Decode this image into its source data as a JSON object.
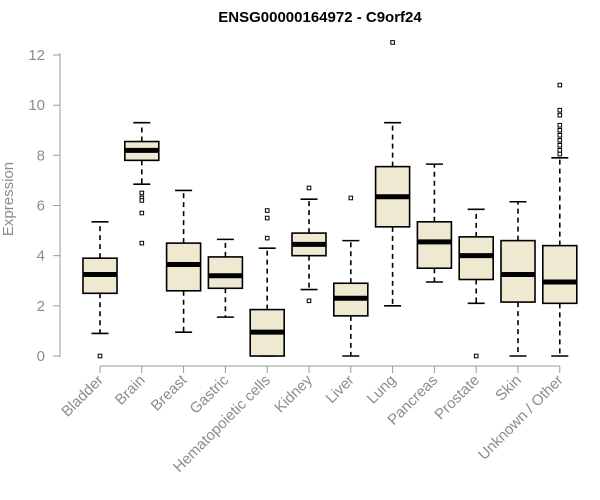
{
  "chart_data": {
    "type": "box",
    "title": "ENSG00000164972 - C9orf24",
    "xlabel": "",
    "ylabel": "Expression",
    "ylim": [
      0,
      12
    ],
    "yticks": [
      "0",
      "2",
      "4",
      "6",
      "8",
      "10",
      "12"
    ],
    "grid": false,
    "box_color": "#efe9d2",
    "categories": [
      {
        "name": "Bladder",
        "min": 0.9,
        "q1": 2.5,
        "median": 3.25,
        "q3": 3.9,
        "max": 5.35,
        "outliers": [
          0.0
        ]
      },
      {
        "name": "Brain",
        "min": 6.85,
        "q1": 7.8,
        "median": 8.2,
        "q3": 8.55,
        "max": 9.3,
        "outliers": [
          6.5,
          6.3,
          6.2,
          5.7,
          4.5
        ]
      },
      {
        "name": "Breast",
        "min": 0.95,
        "q1": 2.6,
        "median": 3.65,
        "q3": 4.5,
        "max": 6.6,
        "outliers": []
      },
      {
        "name": "Gastric",
        "min": 1.55,
        "q1": 2.7,
        "median": 3.2,
        "q3": 3.95,
        "max": 4.65,
        "outliers": []
      },
      {
        "name": "Hematopoietic cells",
        "min": 0.0,
        "q1": 0.0,
        "median": 0.95,
        "q3": 1.85,
        "max": 4.3,
        "outliers": [
          5.8,
          5.5,
          4.7
        ]
      },
      {
        "name": "Kidney",
        "min": 2.65,
        "q1": 4.0,
        "median": 4.45,
        "q3": 4.9,
        "max": 6.25,
        "outliers": [
          6.7,
          2.2
        ]
      },
      {
        "name": "Liver",
        "min": 0.0,
        "q1": 1.6,
        "median": 2.3,
        "q3": 2.9,
        "max": 4.6,
        "outliers": [
          6.3
        ]
      },
      {
        "name": "Lung",
        "min": 2.0,
        "q1": 5.15,
        "median": 6.35,
        "q3": 7.55,
        "max": 9.3,
        "outliers": [
          12.5
        ]
      },
      {
        "name": "Pancreas",
        "min": 2.95,
        "q1": 3.5,
        "median": 4.55,
        "q3": 5.35,
        "max": 7.65,
        "outliers": []
      },
      {
        "name": "Prostate",
        "min": 2.1,
        "q1": 3.05,
        "median": 4.0,
        "q3": 4.75,
        "max": 5.85,
        "outliers": [
          0.0
        ]
      },
      {
        "name": "Skin",
        "min": 0.0,
        "q1": 2.15,
        "median": 3.25,
        "q3": 4.6,
        "max": 6.15,
        "outliers": []
      },
      {
        "name": "Unknown / Other",
        "min": 0.0,
        "q1": 2.1,
        "median": 2.95,
        "q3": 4.4,
        "max": 7.9,
        "outliers": [
          10.8,
          9.8,
          9.6,
          9.2,
          9.0,
          8.8,
          8.6,
          8.4,
          8.2,
          8.05
        ]
      }
    ]
  }
}
